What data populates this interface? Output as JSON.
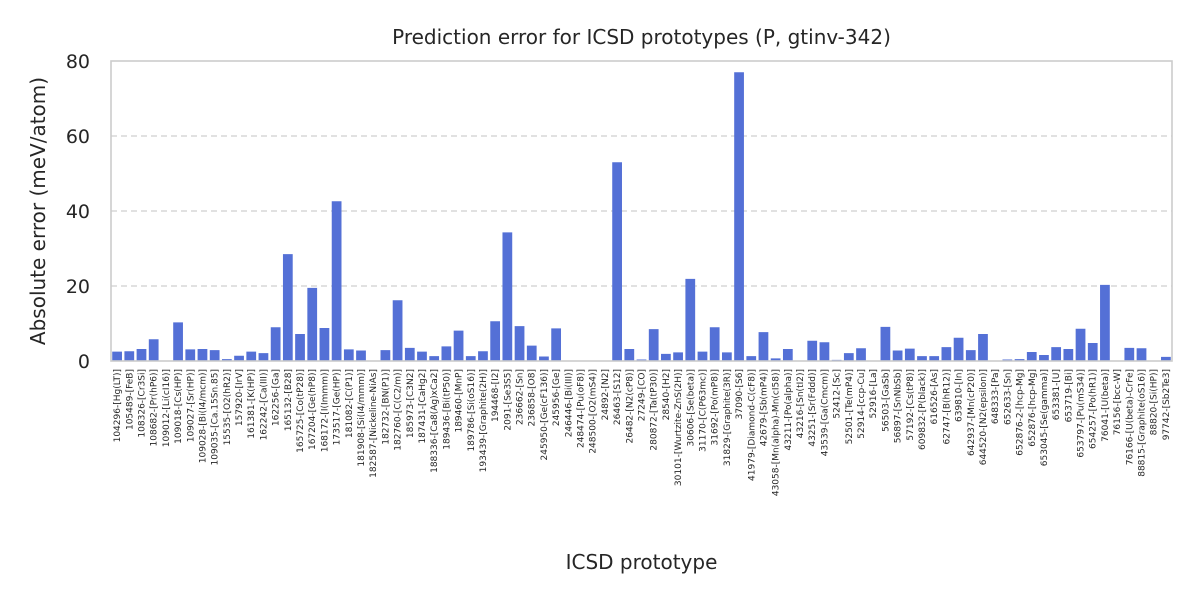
{
  "chart_data": {
    "type": "bar",
    "title": "Prediction error for ICSD prototypes (P, gtinv-342)",
    "xlabel": "ICSD prototype",
    "ylabel": "Absolute error (meV/atom)",
    "ylim": [
      0,
      80
    ],
    "yticks": [
      0,
      20,
      40,
      60,
      80
    ],
    "grid": "horizontal dashed",
    "colors": {
      "bar": "#5470d6",
      "grid": "#cfcfcf",
      "axis": "#cccccc",
      "text": "#262626"
    },
    "categories": [
      "104296-[Hg(LT)]",
      "105489-[FeB]",
      "108326-[Cr3Si]",
      "108682-[Pr(hP6)]",
      "109012-[Li(cI16)]",
      "109018-[Cs(HP)]",
      "109027-[Sr(HP)]",
      "109028-[Bi(I4/mcm)]",
      "109035-[Ca.15Sn.85]",
      "15535-[O2(hR2)]",
      "157920-[IrV]",
      "161381-[K(HP)]",
      "162242-[Ca(III)]",
      "162256-[Ga]",
      "165132-[B28]",
      "165725-[Co(tP28)]",
      "167204-[Ge(hP8)]",
      "168172-[I(Immm)]",
      "173517-[Ge(HP)]",
      "181082-[C(P1)]",
      "181908-[Si(I4/mmm)]",
      "182587-[Nickeline-NiAs]",
      "182732-[BN(P1)]",
      "182760-[C(C2/m)]",
      "185973-[C3N2]",
      "187431-[CaHg2]",
      "188336-[Ca8(Ag)xCa2]",
      "189436-[Bi(tP50)]",
      "189460-[MnP]",
      "189786-[Si(oS16)]",
      "193439-[Graphite(2H)]",
      "194468-[I2]",
      "2091-[Se3S5]",
      "236662-[Sn]",
      "236858-[O8]",
      "245950-[Ge(cF136)]",
      "245956-[Ge]",
      "246446-[Bi(III)]",
      "248474-[Pu(oF8)]",
      "248500-[O2(mS4)]",
      "24892-[N2]",
      "26463-[S12]",
      "26482-[N2(cP8)]",
      "27249-[CO]",
      "280872-[Ta(tP30)]",
      "28540-[H2]",
      "30101-[Wurtzite-ZnS(2H)]",
      "30606-[Se(beta)]",
      "31170-[C(P63mc)]",
      "31692-[Po(mP8)]",
      "31829-[Graphite(3R)]",
      "37090-[S6]",
      "41979-[Diamond-C(cF8)]",
      "42679-[Sb(mP4)]",
      "43058-[Mn(alpha)-Mn(cI58)]",
      "43211-[Po(alpha)]",
      "43216-[Sn(tI2)]",
      "43251-[Sr(Fddd)]",
      "43539-[Ga(Cmcm)]",
      "52412-[Sc]",
      "52501-[Te(mP4)]",
      "52914-[ccp-Cu]",
      "52916-[La]",
      "56503-[GaSb]",
      "56897-[SnNbSb]",
      "57192-[Cs(tP8)]",
      "609832-[P(black)]",
      "616526-[As]",
      "62747-[B(hR12)]",
      "639810-[In]",
      "642937-[Mn(cP20)]",
      "644520-[N2(epsilon)]",
      "648333-[Pa]",
      "652633-[Sn]",
      "652876-2-[hcp-Mg]",
      "652876-[hcp-Mg]",
      "653045-[Se(gamma)]",
      "653381-[U]",
      "653719-[Bi]",
      "653797-[Pu(mS34)]",
      "654257-[Po(hR1)]",
      "76041-[U(beta)]",
      "76156-[bcc-W]",
      "76166-[U(beta)-CrFe]",
      "88815-[Graphite(oS16)]",
      "88820-[Si(HP)]",
      "97742-[Sb2Te3]"
    ],
    "values": [
      2.5,
      2.6,
      3.2,
      5.8,
      0.0,
      10.3,
      3.1,
      3.2,
      2.9,
      0.5,
      1.4,
      2.5,
      2.1,
      9.0,
      28.5,
      7.2,
      19.5,
      8.8,
      42.6,
      3.1,
      2.8,
      0.0,
      2.9,
      16.2,
      3.5,
      2.5,
      1.3,
      3.9,
      8.1,
      1.3,
      2.6,
      10.6,
      34.3,
      9.3,
      4.1,
      1.2,
      8.7,
      0.0,
      0.0,
      0.0,
      0.0,
      53.0,
      3.2,
      0.4,
      8.5,
      1.9,
      2.3,
      21.9,
      2.5,
      9.0,
      2.3,
      77.0,
      1.3,
      7.7,
      0.7,
      3.2,
      0.0,
      5.4,
      5.0,
      0.3,
      2.1,
      3.4,
      0.0,
      9.1,
      2.8,
      3.3,
      1.3,
      1.3,
      3.7,
      6.2,
      2.9,
      7.2,
      0.0,
      0.4,
      0.5,
      2.4,
      1.6,
      3.7,
      3.2,
      8.6,
      4.8,
      20.3,
      0.0,
      3.5,
      3.4,
      0.0,
      1.1
    ]
  }
}
